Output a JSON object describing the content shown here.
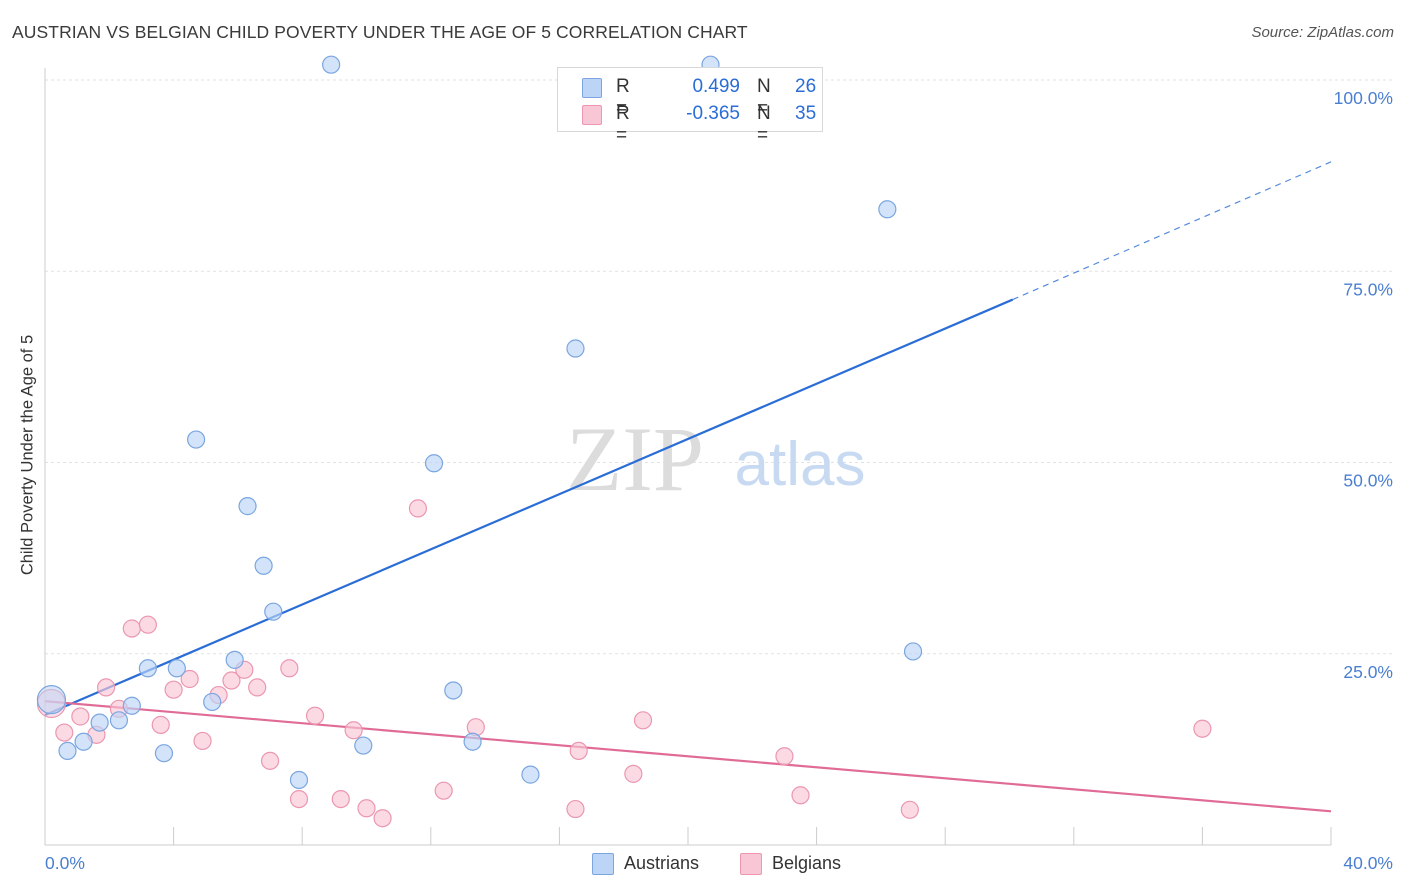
{
  "header": {
    "title": "AUSTRIAN VS BELGIAN CHILD POVERTY UNDER THE AGE OF 5 CORRELATION CHART",
    "source": "Source: ZipAtlas.com"
  },
  "watermark": {
    "zip": "ZIP",
    "atlas": "atlas"
  },
  "colors": {
    "austrians_fill": "#bcd4f6",
    "austrians_stroke": "#7ba6e0",
    "austrians_line": "#2a6dd6",
    "belgians_fill": "#f9c6d5",
    "belgians_stroke": "#eb97b0",
    "belgians_line": "#e06b96",
    "axis_label": "#4a7fd0"
  },
  "legend": {
    "rows": [
      {
        "r_label": "R =",
        "r_value": "0.499",
        "n_label": "N =",
        "n_value": "26"
      },
      {
        "r_label": "R =",
        "r_value": "-0.365",
        "n_label": "N =",
        "n_value": "35"
      }
    ]
  },
  "bottom_legend": {
    "austrians": "Austrians",
    "belgians": "Belgians"
  },
  "chart_data": {
    "type": "scatter",
    "title": "AUSTRIAN VS BELGIAN CHILD POVERTY UNDER THE AGE OF 5 CORRELATION CHART",
    "xlabel": "",
    "ylabel": "Child Poverty Under the Age of 5",
    "xlim": [
      0,
      40
    ],
    "ylim": [
      0,
      100
    ],
    "x_tick_labels": [
      "0.0%",
      "40.0%"
    ],
    "y_ticks": [
      25,
      50,
      75,
      100
    ],
    "y_tick_labels": [
      "25.0%",
      "50.0%",
      "75.0%",
      "100.0%"
    ],
    "grid": "horizontal dashed",
    "legend_position": "top-center",
    "series": [
      {
        "name": "Austrians",
        "points": [
          [
            0.2,
            19.0
          ],
          [
            0.7,
            12.3
          ],
          [
            1.2,
            13.5
          ],
          [
            1.7,
            16.0
          ],
          [
            2.3,
            16.3
          ],
          [
            2.7,
            18.2
          ],
          [
            3.2,
            23.1
          ],
          [
            3.7,
            12.0
          ],
          [
            4.1,
            23.1
          ],
          [
            4.7,
            53.0
          ],
          [
            5.2,
            18.7
          ],
          [
            5.9,
            24.2
          ],
          [
            6.3,
            44.3
          ],
          [
            6.8,
            36.5
          ],
          [
            7.1,
            30.5
          ],
          [
            7.9,
            8.5
          ],
          [
            8.9,
            102.0
          ],
          [
            9.9,
            13.0
          ],
          [
            12.1,
            49.9
          ],
          [
            12.7,
            20.2
          ],
          [
            13.3,
            13.5
          ],
          [
            15.1,
            9.2
          ],
          [
            16.5,
            64.9
          ],
          [
            20.7,
            102.0
          ],
          [
            26.2,
            83.1
          ],
          [
            27.0,
            25.3
          ]
        ],
        "trend": {
          "x1": 0,
          "y1": 17.0,
          "x2": 30.1,
          "y2": 71.3,
          "dashed_to_x": 40,
          "dashed_to_y": 89.3
        }
      },
      {
        "name": "Belgians",
        "points": [
          [
            0.2,
            18.5
          ],
          [
            0.6,
            14.7
          ],
          [
            1.1,
            16.8
          ],
          [
            1.6,
            14.4
          ],
          [
            1.9,
            20.6
          ],
          [
            2.3,
            17.8
          ],
          [
            2.7,
            28.3
          ],
          [
            3.2,
            28.8
          ],
          [
            3.6,
            15.7
          ],
          [
            4.0,
            20.3
          ],
          [
            4.5,
            21.7
          ],
          [
            4.9,
            13.6
          ],
          [
            5.4,
            19.6
          ],
          [
            5.8,
            21.5
          ],
          [
            6.2,
            22.9
          ],
          [
            6.6,
            20.6
          ],
          [
            7.0,
            11.0
          ],
          [
            7.6,
            23.1
          ],
          [
            7.9,
            6.0
          ],
          [
            8.4,
            16.9
          ],
          [
            9.2,
            6.0
          ],
          [
            9.6,
            15.0
          ],
          [
            10.0,
            4.8
          ],
          [
            10.5,
            3.5
          ],
          [
            11.6,
            44.0
          ],
          [
            12.4,
            7.1
          ],
          [
            13.4,
            15.4
          ],
          [
            16.6,
            12.3
          ],
          [
            16.5,
            4.7
          ],
          [
            18.3,
            9.3
          ],
          [
            18.6,
            16.3
          ],
          [
            23.0,
            11.6
          ],
          [
            23.5,
            6.5
          ],
          [
            26.9,
            4.6
          ],
          [
            36.0,
            15.2
          ]
        ],
        "trend": {
          "x1": 0,
          "y1": 18.8,
          "x2": 40,
          "y2": 4.4
        }
      }
    ]
  }
}
